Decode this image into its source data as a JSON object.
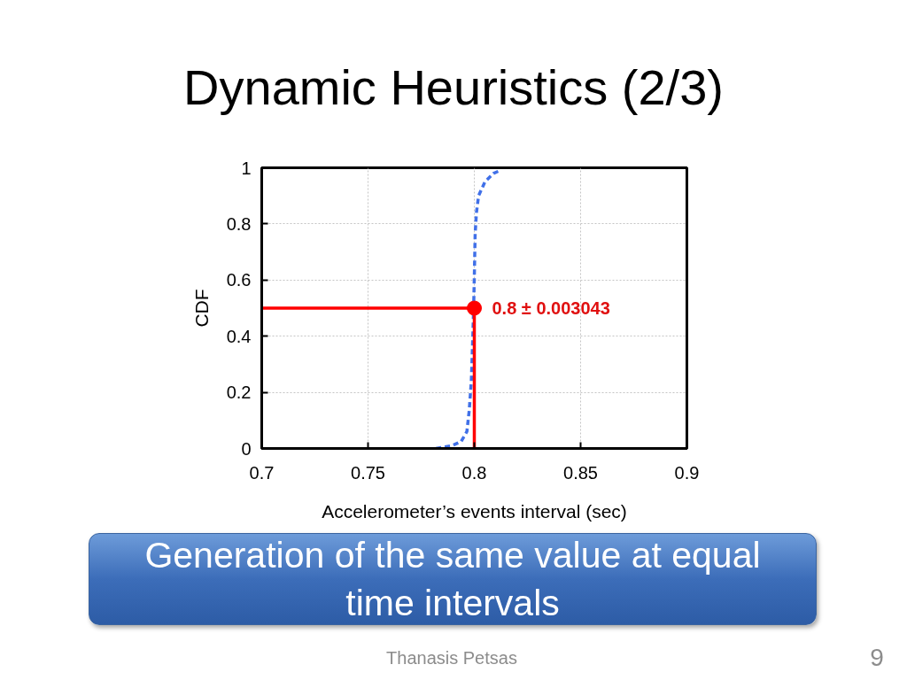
{
  "chart_data": {
    "type": "line",
    "title": "Dynamic Heuristics (2/3)",
    "xlabel": "Accelerometer’s events interval (sec)",
    "ylabel": "CDF",
    "xlim": [
      0.7,
      0.9
    ],
    "ylim": [
      0,
      1
    ],
    "xticks": [
      0.7,
      0.75,
      0.8,
      0.85,
      0.9
    ],
    "yticks": [
      0,
      0.2,
      0.4,
      0.6,
      0.8,
      1
    ],
    "grid": true,
    "series": [
      {
        "color": "#4070e8",
        "line_style": "dashed",
        "marker": "none",
        "x": [
          0.782,
          0.7896,
          0.7938,
          0.7965,
          0.7976,
          0.7986,
          0.7993,
          0.7997,
          0.8,
          0.8004,
          0.801,
          0.802,
          0.805,
          0.809,
          0.812
        ],
        "values": [
          0,
          0.01,
          0.025,
          0.06,
          0.135,
          0.24,
          0.4,
          0.505,
          0.61,
          0.766,
          0.84,
          0.9,
          0.95,
          0.98,
          0.99
        ]
      },
      {
        "color": "#ff0000",
        "line_style": "solid",
        "marker": "none",
        "x": [
          0.7,
          0.8,
          0.8
        ],
        "values": [
          0.5,
          0.5,
          0
        ]
      },
      {
        "type": "scatter",
        "color": "#ff0000",
        "marker": "circle",
        "x": [
          0.8
        ],
        "values": [
          0.5
        ]
      }
    ],
    "annotations": [
      {
        "text": "0.8 ± 0.003043",
        "x": 0.8,
        "y": 0.5
      },
      "Generation of the same value at equal time intervals",
      "Thanasis Petsas",
      "9"
    ]
  }
}
